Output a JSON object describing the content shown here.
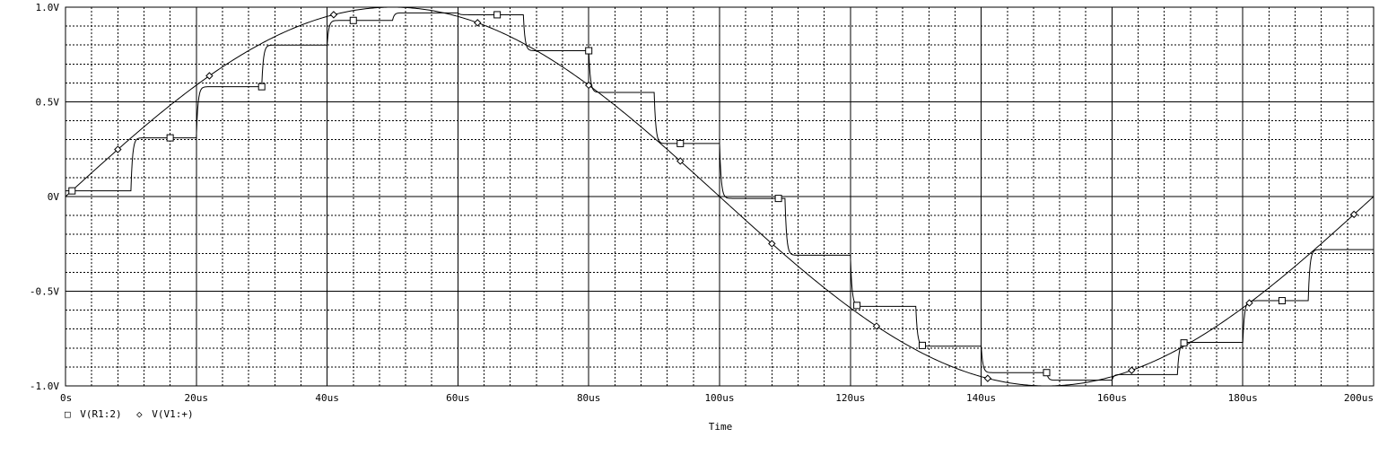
{
  "chart_data": {
    "type": "line",
    "xlabel": "Time",
    "ylabel": "",
    "xlim": [
      0,
      200
    ],
    "ylim": [
      -1.0,
      1.0
    ],
    "x_ticks": [
      {
        "value": 0,
        "label": "0s"
      },
      {
        "value": 20,
        "label": "20us"
      },
      {
        "value": 40,
        "label": "40us"
      },
      {
        "value": 60,
        "label": "60us"
      },
      {
        "value": 80,
        "label": "80us"
      },
      {
        "value": 100,
        "label": "100us"
      },
      {
        "value": 120,
        "label": "120us"
      },
      {
        "value": 140,
        "label": "140us"
      },
      {
        "value": 160,
        "label": "160us"
      },
      {
        "value": 180,
        "label": "180us"
      },
      {
        "value": 200,
        "label": "200us"
      }
    ],
    "y_ticks": [
      {
        "value": 1.0,
        "label": "1.0V"
      },
      {
        "value": 0.5,
        "label": "0.5V"
      },
      {
        "value": 0.0,
        "label": "0V"
      },
      {
        "value": -0.5,
        "label": "-0.5V"
      },
      {
        "value": -1.0,
        "label": "-1.0V"
      }
    ],
    "grid": true,
    "legend_position": "bottom-left",
    "series": [
      {
        "name": "V(R1:2)",
        "marker": "square",
        "style": "step",
        "steps": [
          {
            "t": 0,
            "v": 0.03
          },
          {
            "t": 10,
            "v": 0.31
          },
          {
            "t": 20,
            "v": 0.58
          },
          {
            "t": 30,
            "v": 0.8
          },
          {
            "t": 40,
            "v": 0.93
          },
          {
            "t": 50,
            "v": 0.97
          },
          {
            "t": 60,
            "v": 0.96
          },
          {
            "t": 70,
            "v": 0.77
          },
          {
            "t": 80,
            "v": 0.55
          },
          {
            "t": 90,
            "v": 0.28
          },
          {
            "t": 100,
            "v": -0.01
          },
          {
            "t": 110,
            "v": -0.31
          },
          {
            "t": 120,
            "v": -0.58
          },
          {
            "t": 130,
            "v": -0.79
          },
          {
            "t": 140,
            "v": -0.93
          },
          {
            "t": 150,
            "v": -0.97
          },
          {
            "t": 160,
            "v": -0.94
          },
          {
            "t": 170,
            "v": -0.77
          },
          {
            "t": 180,
            "v": -0.55
          },
          {
            "t": 190,
            "v": -0.28
          }
        ],
        "marker_x": [
          1,
          16,
          30,
          44,
          66,
          80,
          94,
          109,
          121,
          131,
          150,
          171,
          186
        ]
      },
      {
        "name": "V(V1:+)",
        "marker": "diamond",
        "style": "line",
        "function": "sine",
        "amplitude": 1.0,
        "period": 200,
        "marker_x": [
          8,
          22,
          41,
          63,
          80,
          94,
          108,
          124,
          141,
          163,
          181,
          197
        ]
      }
    ]
  },
  "legend": {
    "items": [
      {
        "marker": "□",
        "label": "V(R1:2)"
      },
      {
        "marker": "◇",
        "label": "V(V1:+)"
      }
    ]
  },
  "x_axis_title": "Time",
  "colors": {
    "background": "#ffffff",
    "trace": "#000000",
    "grid": "#000000"
  }
}
